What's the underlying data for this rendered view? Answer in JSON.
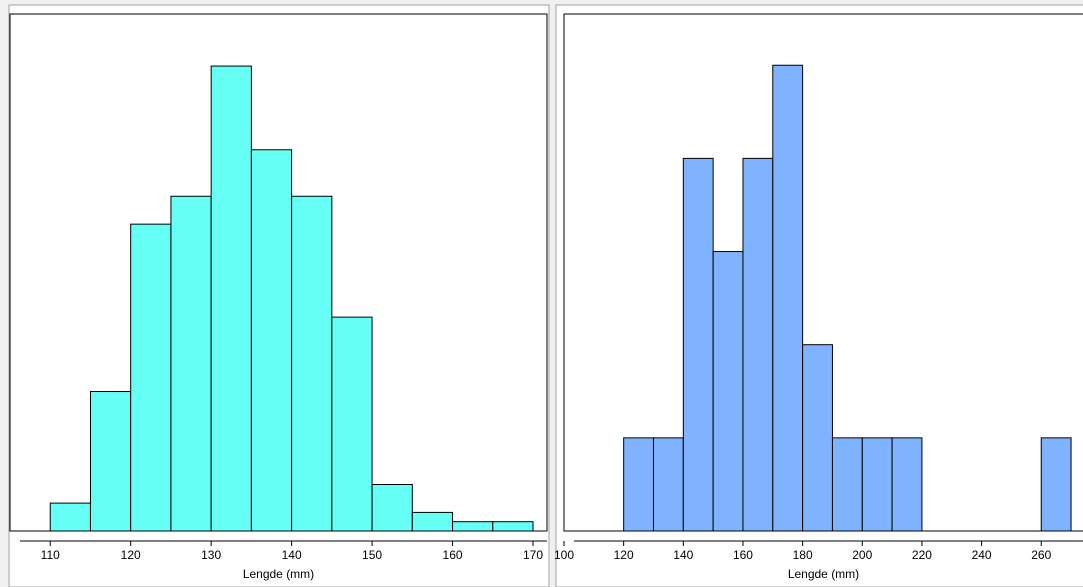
{
  "chart_data": [
    {
      "type": "histogram",
      "x_label": "Lengde (mm)",
      "color": "#66fff6",
      "bins": [
        110,
        115,
        120,
        125,
        130,
        135,
        140,
        145,
        150,
        155,
        160,
        165,
        170
      ],
      "values": [
        3,
        15,
        33,
        36,
        50,
        41,
        36,
        23,
        5,
        2,
        1,
        1
      ],
      "xlim": [
        105,
        170
      ],
      "xticks": [
        110,
        120,
        130,
        140,
        150,
        160,
        170
      ],
      "ylim": [
        0,
        55.6
      ]
    },
    {
      "type": "histogram",
      "x_label": "Lengde (mm)",
      "color": "#80b3ff",
      "bins": [
        120,
        130,
        140,
        150,
        160,
        170,
        180,
        190,
        200,
        210,
        220,
        230,
        240,
        250,
        260,
        270
      ],
      "values": [
        1,
        1,
        4,
        3,
        4,
        5,
        2,
        1,
        1,
        1,
        0,
        0,
        0,
        0,
        1
      ],
      "xlim": [
        100,
        274
      ],
      "xticks": [
        100,
        120,
        140,
        160,
        180,
        200,
        220,
        240,
        260
      ],
      "ylim": [
        0,
        5.55
      ]
    }
  ]
}
